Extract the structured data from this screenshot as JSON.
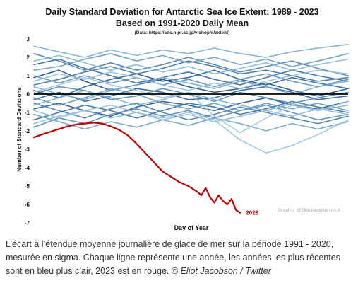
{
  "chart_data": {
    "type": "line",
    "title": "Daily Standard Deviation for Antarctic Sea Ice Extent: 1989 - 2023",
    "subtitle": "Based on 1991-2020 Daily Mean",
    "source_note": "(Data: https://ads.nipr.ac.jp/vishop/#/extent)",
    "xlabel": "Day of Year",
    "ylabel": "Number of Standard Deviations",
    "y_ticks": [
      3,
      2,
      1,
      0,
      -1,
      -2,
      -3,
      -4,
      -5,
      -6,
      -7
    ],
    "ylim": [
      -7,
      3
    ],
    "xlim": [
      1,
      365
    ],
    "grid": false,
    "watermark": "Graphic: @EliotJacobson on X",
    "highlight_series": {
      "name": "2023",
      "color": "#c00000",
      "x": [
        1,
        10,
        20,
        30,
        40,
        50,
        60,
        70,
        80,
        90,
        100,
        110,
        120,
        130,
        140,
        150,
        160,
        170,
        180,
        190,
        195,
        200,
        205,
        210,
        215,
        220,
        225,
        230,
        235,
        240
      ],
      "values": [
        -2.35,
        -2.2,
        -2.05,
        -1.9,
        -1.75,
        -1.65,
        -1.6,
        -1.55,
        -1.6,
        -1.75,
        -1.95,
        -2.25,
        -2.7,
        -3.2,
        -3.7,
        -4.2,
        -4.5,
        -4.8,
        -5.0,
        -5.3,
        -5.5,
        -5.1,
        -5.6,
        -5.9,
        -5.5,
        -5.8,
        -6.0,
        -5.7,
        -6.3,
        -6.45
      ]
    },
    "other_series_x": [
      1,
      30,
      60,
      90,
      120,
      150,
      180,
      210,
      240,
      270,
      300,
      330,
      365
    ],
    "other_series": [
      {
        "color": "#1f4e8c",
        "values": [
          0.9,
          1.3,
          0.7,
          0.2,
          0.5,
          0.8,
          0.4,
          0.1,
          0.3,
          0.6,
          0.2,
          -0.1,
          0.3
        ]
      },
      {
        "color": "#23548f",
        "values": [
          -0.8,
          -0.5,
          -0.9,
          -1.2,
          -0.7,
          -0.4,
          -0.6,
          -0.9,
          -0.5,
          -0.2,
          -0.6,
          -0.8,
          -0.4
        ]
      },
      {
        "color": "#295b95",
        "values": [
          0.2,
          -0.2,
          0.4,
          0.8,
          1.1,
          0.7,
          0.9,
          1.3,
          0.8,
          0.5,
          0.9,
          0.6,
          0.3
        ]
      },
      {
        "color": "#2e6199",
        "values": [
          -0.3,
          0.1,
          -0.4,
          -0.1,
          0.3,
          0.1,
          -0.3,
          -0.2,
          0.2,
          0.4,
          0.1,
          -0.3,
          -0.1
        ]
      },
      {
        "color": "#34689e",
        "values": [
          1.6,
          1.9,
          1.4,
          1.0,
          0.6,
          0.9,
          1.2,
          0.8,
          0.5,
          0.9,
          1.3,
          1.0,
          0.7
        ]
      },
      {
        "color": "#3a6ea3",
        "values": [
          -1.4,
          -1.0,
          -0.6,
          -0.9,
          -1.3,
          -0.9,
          -0.5,
          -0.7,
          -1.1,
          -0.8,
          -0.4,
          -0.7,
          -1.0
        ]
      },
      {
        "color": "#3f74a7",
        "values": [
          0.5,
          0.8,
          1.2,
          1.5,
          1.1,
          1.4,
          1.8,
          1.5,
          1.1,
          1.3,
          1.0,
          0.7,
          0.9
        ]
      },
      {
        "color": "#457aab",
        "values": [
          -0.5,
          -0.9,
          -1.3,
          -0.8,
          -0.5,
          -1.0,
          -1.4,
          -1.1,
          -0.7,
          -1.0,
          -1.3,
          -1.6,
          -1.2
        ]
      },
      {
        "color": "#4b80b0",
        "values": [
          2.2,
          1.8,
          1.3,
          1.7,
          1.3,
          1.6,
          2.0,
          1.6,
          1.2,
          1.5,
          1.8,
          1.4,
          1.0
        ]
      },
      {
        "color": "#5186b4",
        "values": [
          0.0,
          0.4,
          0.2,
          -0.3,
          -0.1,
          0.3,
          0.0,
          -0.4,
          0.1,
          -0.2,
          -0.5,
          -0.2,
          0.1
        ]
      },
      {
        "color": "#568bb8",
        "values": [
          -1.8,
          -1.3,
          -1.6,
          -1.1,
          -0.8,
          -1.2,
          -0.9,
          -1.3,
          -0.9,
          -0.6,
          -1.0,
          -1.4,
          -1.1
        ]
      },
      {
        "color": "#5c91bc",
        "values": [
          1.0,
          0.6,
          1.0,
          0.6,
          0.9,
          0.5,
          0.8,
          0.4,
          0.8,
          1.1,
          0.7,
          0.4,
          0.8
        ]
      },
      {
        "color": "#6297c0",
        "values": [
          -0.2,
          -0.6,
          -0.2,
          0.3,
          0.0,
          -0.5,
          -0.8,
          -0.5,
          -0.9,
          -0.5,
          -0.8,
          -0.5,
          -0.9
        ]
      },
      {
        "color": "#689cc4",
        "values": [
          1.3,
          1.5,
          1.9,
          2.2,
          1.8,
          2.1,
          1.7,
          2.0,
          1.6,
          1.9,
          1.5,
          1.8,
          2.2
        ]
      },
      {
        "color": "#6ea2c8",
        "values": [
          -1.1,
          -1.5,
          -1.9,
          -1.5,
          -1.8,
          -1.4,
          -1.7,
          -1.3,
          -1.6,
          -2.0,
          -1.6,
          -1.9,
          -1.5
        ]
      },
      {
        "color": "#74a7cc",
        "values": [
          0.4,
          0.0,
          -0.3,
          0.2,
          0.5,
          0.9,
          0.6,
          0.3,
          0.7,
          0.4,
          0.0,
          0.4,
          0.7
        ]
      },
      {
        "color": "#7aacd0",
        "values": [
          2.6,
          2.3,
          2.0,
          2.4,
          2.1,
          2.4,
          2.2,
          2.5,
          2.2,
          2.0,
          2.3,
          2.5,
          2.7
        ]
      },
      {
        "color": "#80b1d3",
        "values": [
          -0.6,
          -0.2,
          0.2,
          -0.2,
          -0.6,
          -0.3,
          0.1,
          -0.3,
          -0.6,
          -0.9,
          -0.5,
          -0.9,
          -0.6
        ]
      },
      {
        "color": "#86b6d6",
        "values": [
          1.8,
          2.1,
          1.7,
          1.3,
          1.6,
          1.2,
          1.5,
          1.1,
          1.4,
          1.7,
          1.3,
          1.6,
          1.9
        ]
      },
      {
        "color": "#8cbad9",
        "values": [
          -1.6,
          -1.2,
          -0.9,
          -1.3,
          -1.0,
          -1.4,
          -1.1,
          -1.5,
          -1.2,
          -0.9,
          -1.2,
          -0.8,
          -1.1
        ]
      },
      {
        "color": "#93bfdc",
        "values": [
          0.7,
          1.1,
          0.8,
          1.2,
          0.9,
          0.5,
          0.2,
          0.6,
          0.3,
          0.7,
          1.0,
          1.3,
          1.1
        ]
      },
      {
        "color": "#99c3df",
        "values": [
          -0.9,
          -1.3,
          -0.9,
          -0.6,
          -1.0,
          -1.3,
          -1.0,
          -1.4,
          -2.5,
          -3.2,
          -2.8,
          -2.2,
          -1.4
        ]
      },
      {
        "color": "#9fc7e1",
        "values": [
          0.1,
          0.5,
          0.9,
          0.5,
          0.2,
          -0.2,
          0.1,
          -1.2,
          -2.1,
          -1.3,
          -0.6,
          -0.9,
          -0.4
        ]
      }
    ]
  },
  "caption": {
    "text": "L’écart à l’étendue moyenne journalière de glace de mer sur la période 1991 - 2020, mesurée en sigma. Chaque ligne représente une année, les années les plus récentes sont en bleu plus clair, 2023 est en rouge.",
    "credit": "© Eliot Jacobson / Twitter"
  }
}
